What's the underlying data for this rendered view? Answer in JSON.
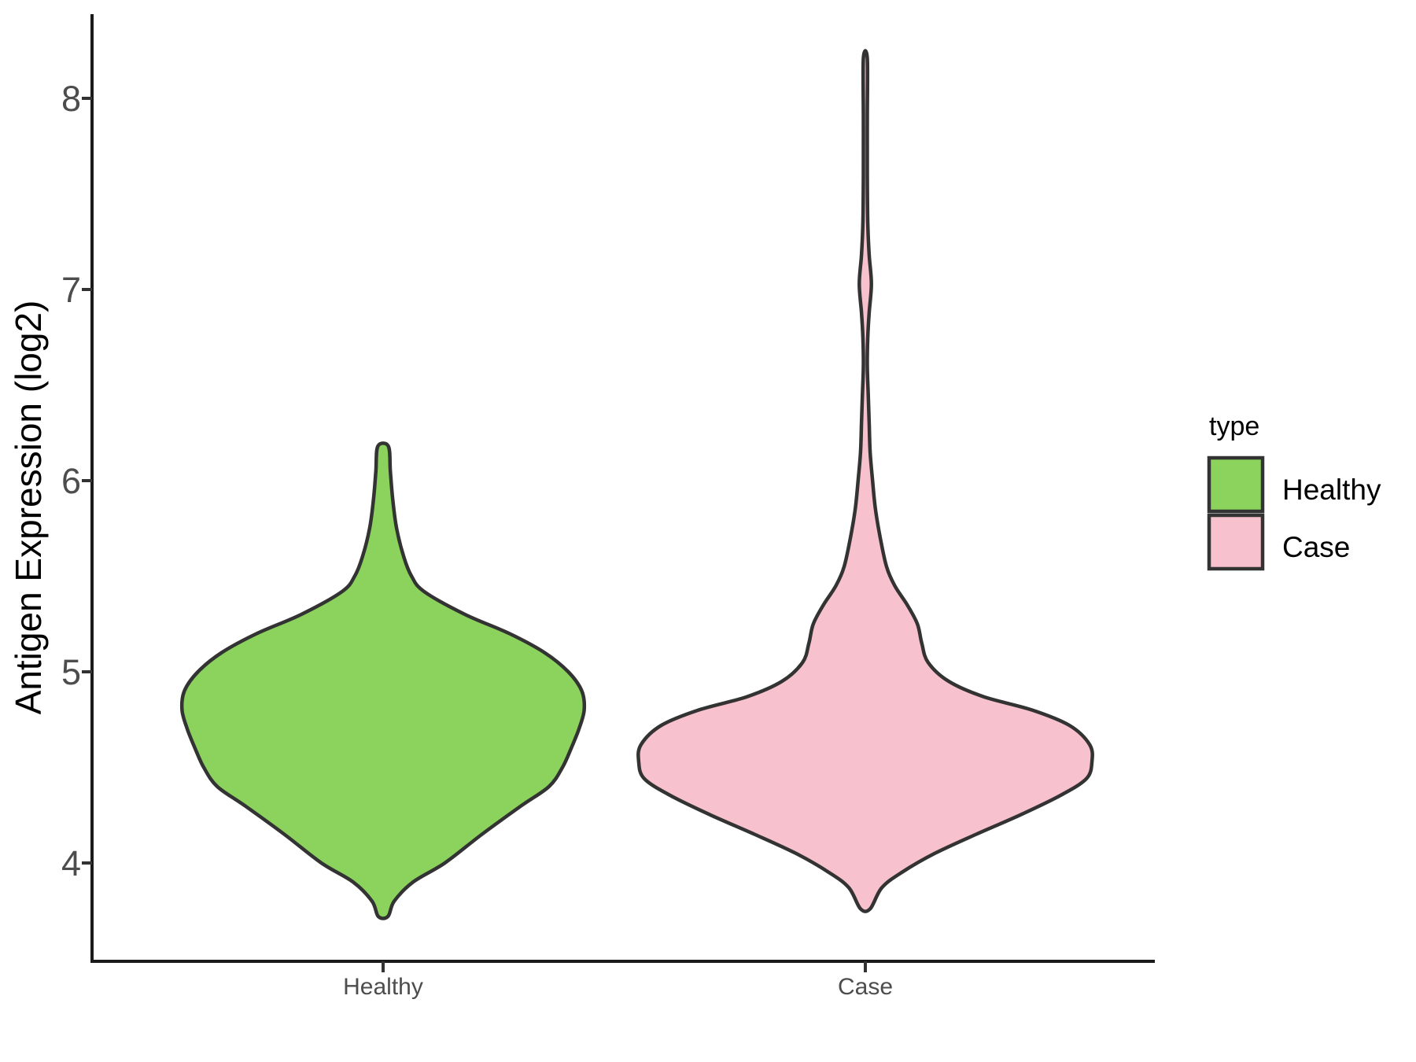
{
  "figure": {
    "background": "#FFFFFF",
    "kind": "ggplot-style violin plot, no gridlines, open top/right panel"
  },
  "y_axis": {
    "title": "Antigen Expression (log2)",
    "tick_labels": [
      "4",
      "5",
      "6",
      "7",
      "8"
    ],
    "tick_label_color": "#4D4D4D",
    "title_color": "#000000"
  },
  "x_axis": {
    "categories": [
      "Healthy",
      "Case"
    ],
    "tick_label_color": "#4D4D4D"
  },
  "legend": {
    "title": "type",
    "title_color": "#000000",
    "items": [
      {
        "label": "Healthy",
        "color": "#8CD35E"
      },
      {
        "label": "Case",
        "color": "#F7C2CD"
      }
    ]
  },
  "style": {
    "violin_stroke": "#333333",
    "axis_line_color": "#1A1A1A",
    "tick_mark_color": "#333333"
  },
  "chart_data": {
    "type": "violin",
    "title": "",
    "xlabel": "",
    "ylabel": "Antigen Expression (log2)",
    "categories": [
      "Healthy",
      "Case"
    ],
    "yticks": [
      4,
      5,
      6,
      7,
      8
    ],
    "ylim_shown": [
      3.5,
      8.43
    ],
    "grid": false,
    "legend_position": "right",
    "legend_title": "type",
    "series": [
      {
        "name": "Healthy",
        "fill": "#8CD35E",
        "value_min": 3.72,
        "value_max": 6.18,
        "peak_density_value": 4.8,
        "profile_value_halfwidth": [
          [
            6.18,
            0.011
          ],
          [
            6.05,
            0.015
          ],
          [
            5.9,
            0.02
          ],
          [
            5.75,
            0.028
          ],
          [
            5.6,
            0.043
          ],
          [
            5.5,
            0.059
          ],
          [
            5.42,
            0.085
          ],
          [
            5.3,
            0.17
          ],
          [
            5.2,
            0.262
          ],
          [
            5.1,
            0.335
          ],
          [
            5.0,
            0.384
          ],
          [
            4.9,
            0.412
          ],
          [
            4.8,
            0.417
          ],
          [
            4.7,
            0.406
          ],
          [
            4.6,
            0.39
          ],
          [
            4.5,
            0.372
          ],
          [
            4.4,
            0.344
          ],
          [
            4.3,
            0.287
          ],
          [
            4.15,
            0.205
          ],
          [
            4.0,
            0.128
          ],
          [
            3.9,
            0.062
          ],
          [
            3.8,
            0.023
          ],
          [
            3.72,
            0.01
          ]
        ]
      },
      {
        "name": "Case",
        "fill": "#F7C2CD",
        "value_min": 3.76,
        "value_max": 8.21,
        "peak_density_value": 4.53,
        "profile_value_halfwidth": [
          [
            8.21,
            0.004
          ],
          [
            7.9,
            0.004
          ],
          [
            7.6,
            0.004
          ],
          [
            7.35,
            0.005
          ],
          [
            7.18,
            0.008
          ],
          [
            7.03,
            0.0125
          ],
          [
            6.88,
            0.008
          ],
          [
            6.75,
            0.005
          ],
          [
            6.6,
            0.004
          ],
          [
            6.45,
            0.006
          ],
          [
            6.3,
            0.008
          ],
          [
            6.15,
            0.01
          ],
          [
            6.0,
            0.015
          ],
          [
            5.85,
            0.021
          ],
          [
            5.7,
            0.031
          ],
          [
            5.55,
            0.044
          ],
          [
            5.45,
            0.061
          ],
          [
            5.35,
            0.087
          ],
          [
            5.25,
            0.108
          ],
          [
            5.15,
            0.117
          ],
          [
            5.05,
            0.13
          ],
          [
            4.95,
            0.173
          ],
          [
            4.87,
            0.245
          ],
          [
            4.8,
            0.346
          ],
          [
            4.72,
            0.423
          ],
          [
            4.62,
            0.465
          ],
          [
            4.53,
            0.47
          ],
          [
            4.44,
            0.458
          ],
          [
            4.35,
            0.402
          ],
          [
            4.25,
            0.32
          ],
          [
            4.15,
            0.23
          ],
          [
            4.05,
            0.144
          ],
          [
            3.95,
            0.075
          ],
          [
            3.87,
            0.034
          ],
          [
            3.76,
            0.01
          ]
        ]
      }
    ]
  }
}
